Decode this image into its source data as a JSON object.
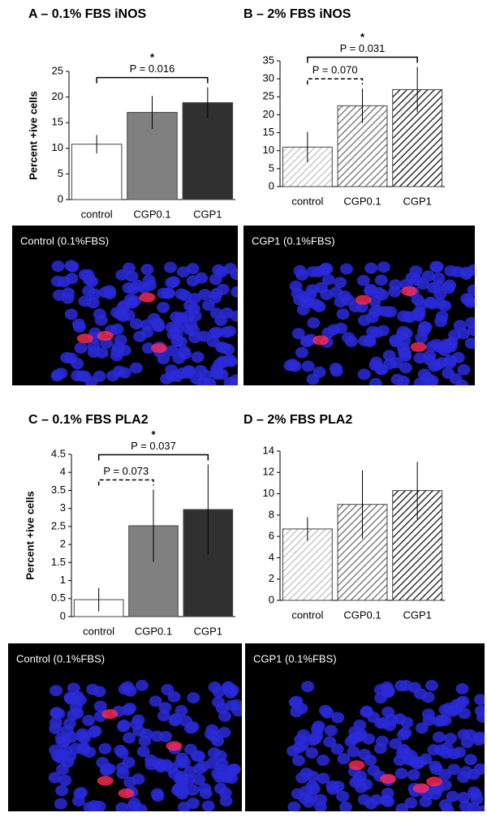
{
  "chart_data": [
    {
      "type": "bar",
      "title": "A – 0.1% FBS iNOS",
      "y_label": "Percent +ive cells",
      "categories": [
        "control",
        "CGP0.1",
        "CGP1"
      ],
      "values": [
        10.8,
        17.0,
        18.9
      ],
      "errors": [
        1.8,
        3.2,
        3.0
      ],
      "bar_colors": [
        "#ffffff",
        "#808080",
        "#303030"
      ],
      "hatched": false,
      "ylim": [
        0,
        25
      ],
      "yticks": [
        0,
        5,
        10,
        15,
        20,
        25
      ],
      "annotations": [
        {
          "text": "P = 0.016",
          "star": "*",
          "between": [
            "control",
            "CGP1"
          ],
          "dashed": false
        }
      ]
    },
    {
      "type": "bar",
      "title": "B – 2% FBS iNOS",
      "categories": [
        "control",
        "CGP0.1",
        "CGP1"
      ],
      "values": [
        11.0,
        22.5,
        27.0
      ],
      "errors": [
        4.2,
        4.8,
        6.3
      ],
      "bar_colors": [
        "#c8c8c8",
        "#808080",
        "#303030"
      ],
      "hatched": true,
      "ylim": [
        0,
        35
      ],
      "yticks": [
        0,
        5,
        10,
        15,
        20,
        25,
        30,
        35
      ],
      "annotations": [
        {
          "text": "P = 0.070",
          "between": [
            "control",
            "CGP0.1"
          ],
          "dashed": true
        },
        {
          "text": "P = 0.031",
          "star": "*",
          "between": [
            "control",
            "CGP1"
          ],
          "dashed": false
        }
      ]
    },
    {
      "type": "bar",
      "title": "C – 0.1% FBS PLA2",
      "y_label": "Percent +ive cells",
      "categories": [
        "control",
        "CGP0.1",
        "CGP1"
      ],
      "values": [
        0.47,
        2.52,
        2.97
      ],
      "errors": [
        0.33,
        1.0,
        1.25
      ],
      "bar_colors": [
        "#ffffff",
        "#808080",
        "#303030"
      ],
      "hatched": false,
      "ylim": [
        0,
        4.5
      ],
      "yticks": [
        0,
        0.5,
        1,
        1.5,
        2,
        2.5,
        3,
        3.5,
        4,
        4.5
      ],
      "annotations": [
        {
          "text": "P = 0.073",
          "between": [
            "control",
            "CGP0.1"
          ],
          "dashed": true
        },
        {
          "text": "P = 0.037",
          "star": "*",
          "between": [
            "control",
            "CGP1"
          ],
          "dashed": false
        }
      ]
    },
    {
      "type": "bar",
      "title": "D – 2% FBS PLA2",
      "categories": [
        "control",
        "CGP0.1",
        "CGP1"
      ],
      "values": [
        6.7,
        9.0,
        10.3
      ],
      "errors": [
        1.1,
        3.2,
        2.7
      ],
      "bar_colors": [
        "#c8c8c8",
        "#808080",
        "#303030"
      ],
      "hatched": true,
      "ylim": [
        0,
        14
      ],
      "yticks": [
        0,
        2,
        4,
        6,
        8,
        10,
        12,
        14
      ],
      "annotations": []
    }
  ],
  "images": [
    {
      "label": "Control (0.1%FBS)"
    },
    {
      "label": "CGP1 (0.1%FBS)"
    },
    {
      "label": "Control (0.1%FBS)"
    },
    {
      "label": "CGP1 (0.1%FBS)"
    }
  ]
}
